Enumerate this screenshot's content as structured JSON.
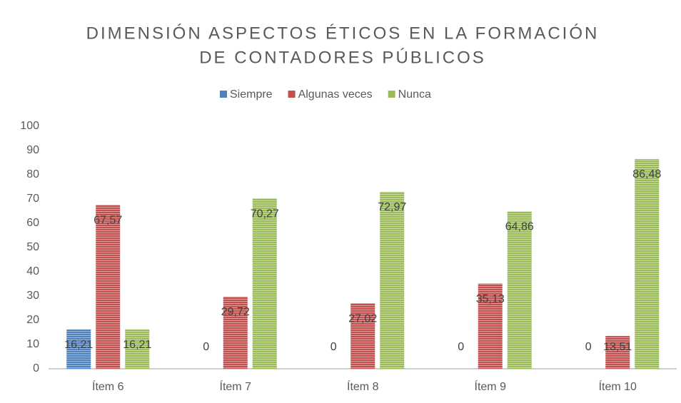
{
  "chart_data": {
    "type": "bar",
    "title": [
      "DIMENSIÓN ASPECTOS ÉTICOS EN LA FORMACIÓN",
      "DE CONTADORES PÚBLICOS"
    ],
    "categories": [
      "Ítem 6",
      "Ítem 7",
      "Ítem 8",
      "Ítem 9",
      "Ítem 10"
    ],
    "series": [
      {
        "name": "Siempre",
        "color": "#4f81bd",
        "values": [
          16.21,
          0,
          0,
          0,
          0
        ],
        "value_labels": [
          "16,21",
          "0",
          "0",
          "0",
          "0"
        ]
      },
      {
        "name": "Algunas veces",
        "color": "#c0504d",
        "values": [
          67.57,
          29.72,
          27.02,
          35.13,
          13.51
        ],
        "value_labels": [
          "67,57",
          "29,72",
          "27,02",
          "35,13",
          "13,51"
        ]
      },
      {
        "name": "Nunca",
        "color": "#9bbb59",
        "values": [
          16.21,
          70.27,
          72.97,
          64.86,
          86.48
        ],
        "value_labels": [
          "16,21",
          "70,27",
          "72,97",
          "64,86",
          "86,48"
        ]
      }
    ],
    "ylim": [
      0,
      100
    ],
    "yticks": [
      0,
      10,
      20,
      30,
      40,
      50,
      60,
      70,
      80,
      90,
      100
    ],
    "legend": "top"
  }
}
